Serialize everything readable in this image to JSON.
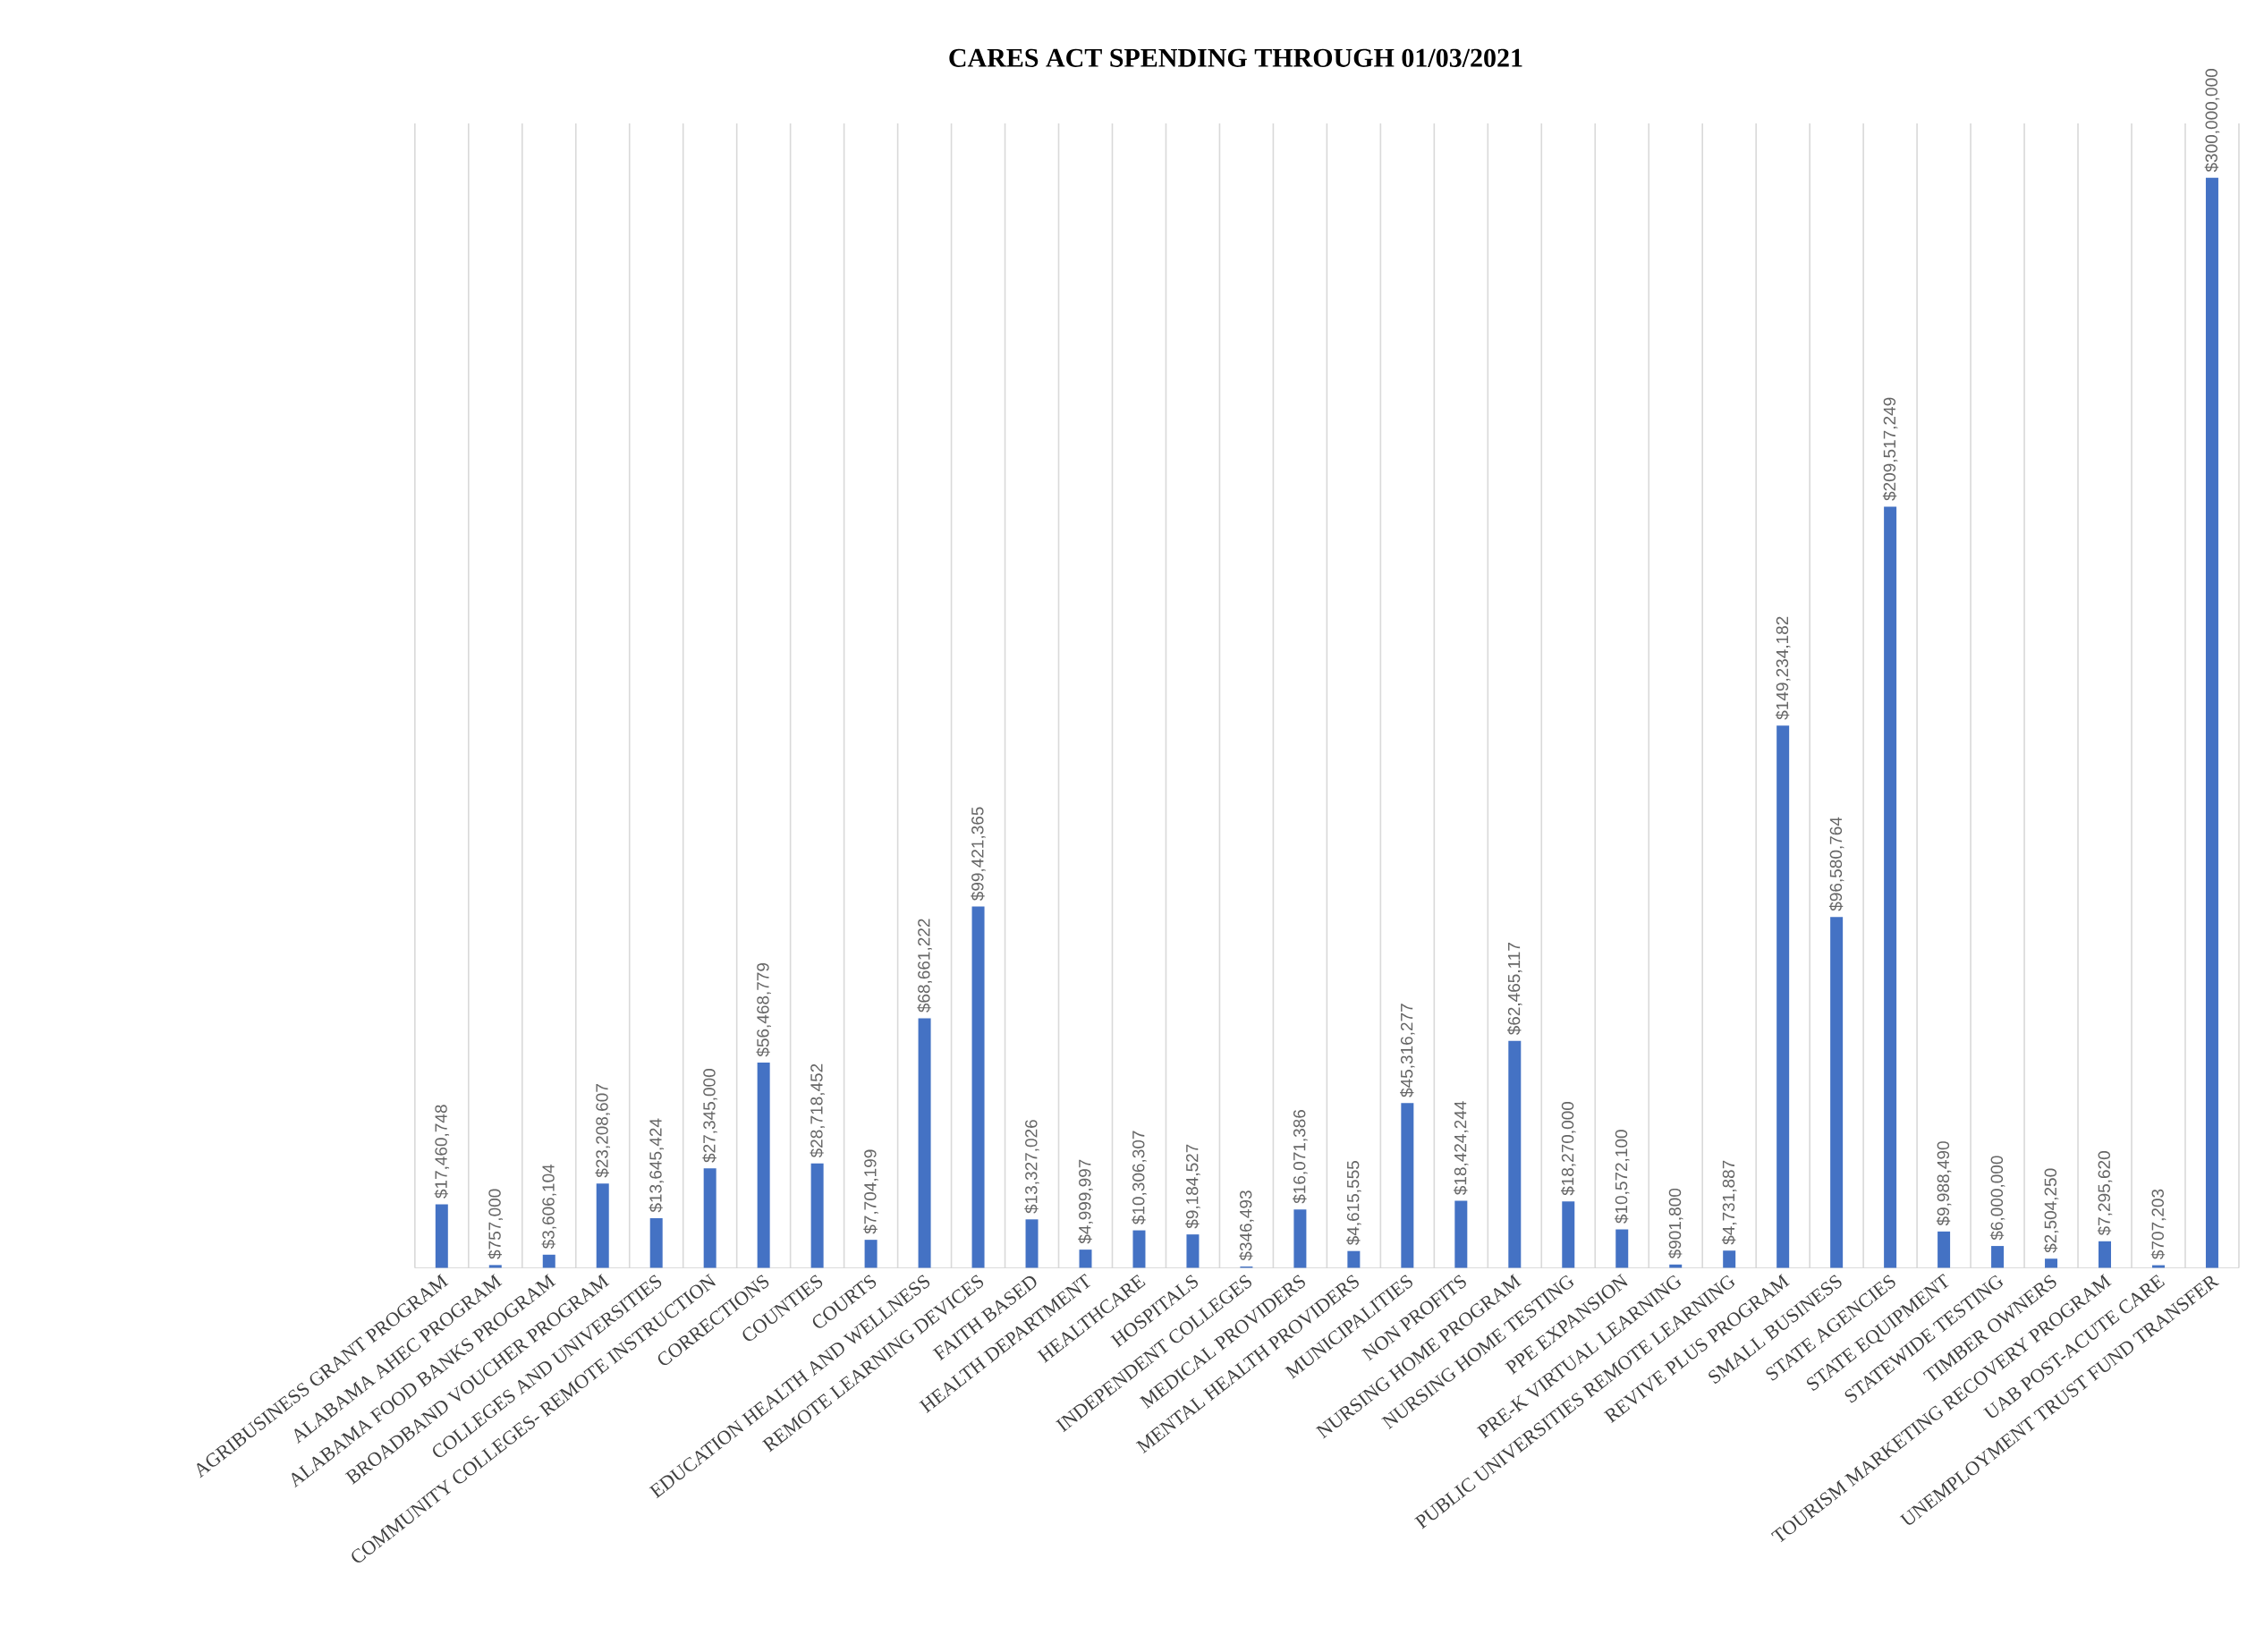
{
  "chart_data": {
    "type": "bar",
    "title": "CARES ACT SPENDING THROUGH 01/03/2021",
    "categories": [
      "AGRIBUSINESS GRANT PROGRAM",
      "ALABAMA AHEC PROGRAM",
      "ALABAMA FOOD BANKS PROGRAM",
      "BROADBAND VOUCHER PROGRAM",
      "COLLEGES AND UNIVERSITIES",
      "COMMUNITY COLLEGES- REMOTE INSTRUCTION",
      "CORRECTIONS",
      "COUNTIES",
      "COURTS",
      "EDUCATION HEALTH AND WELLNESS",
      "REMOTE LEARNING DEVICES",
      "FAITH BASED",
      "HEALTH DEPARTMENT",
      "HEALTHCARE",
      "HOSPITALS",
      "INDEPENDENT COLLEGES",
      "MEDICAL PROVIDERS",
      "MENTAL HEALTH PROVIDERS",
      "MUNICIPALITIES",
      "NON PROFITS",
      "NURSING HOME PROGRAM",
      "NURSING HOME TESTING",
      "PPE EXPANSION",
      "PRE-K VIRTUAL LEARNING",
      "PUBLIC UNIVERSITIES REMOTE LEARNING",
      "REVIVE PLUS PROGRAM",
      "SMALL BUSINESS",
      "STATE AGENCIES",
      "STATE EQUIPMENT",
      "STATEWIDE TESTING",
      "TIMBER OWNERS",
      "TOURISM MARKETING RECOVERY PROGRAM",
      "UAB POST-ACUTE CARE",
      "UNEMPLOYMENT TRUST FUND TRANSFER"
    ],
    "values": [
      17460748,
      757000,
      3606104,
      23208607,
      13645424,
      27345000,
      56468779,
      28718452,
      7704199,
      68661222,
      99421365,
      13327026,
      4999997,
      10306307,
      9184527,
      346493,
      16071386,
      4615555,
      45316277,
      18424244,
      62465117,
      18270000,
      10572100,
      901800,
      4731887,
      149234182,
      96580764,
      209517249,
      9988490,
      6000000,
      2504250,
      7295620,
      707203,
      300000000
    ],
    "value_labels": [
      "$17,460,748",
      "$757,000",
      "$3,606,104",
      "$23,208,607",
      "$13,645,424",
      "$27,345,000",
      "$56,468,779",
      "$28,718,452",
      "$7,704,199",
      "$68,661,222",
      "$99,421,365",
      "$13,327,026",
      "$4,999,997",
      "$10,306,307",
      "$9,184,527",
      "$346,493",
      "$16,071,386",
      "$4,615,555",
      "$45,316,277",
      "$18,424,244",
      "$62,465,117",
      "$18,270,000",
      "$10,572,100",
      "$901,800",
      "$4,731,887",
      "$149,234,182",
      "$96,580,764",
      "$209,517,249",
      "$9,988,490",
      "$6,000,000",
      "$2,504,250",
      "$7,295,620",
      "$707,203",
      "$300,000,000"
    ],
    "color": "#4472c4",
    "ylim": [
      0,
      315000000
    ],
    "grid": "x",
    "tick_labels": "x"
  }
}
